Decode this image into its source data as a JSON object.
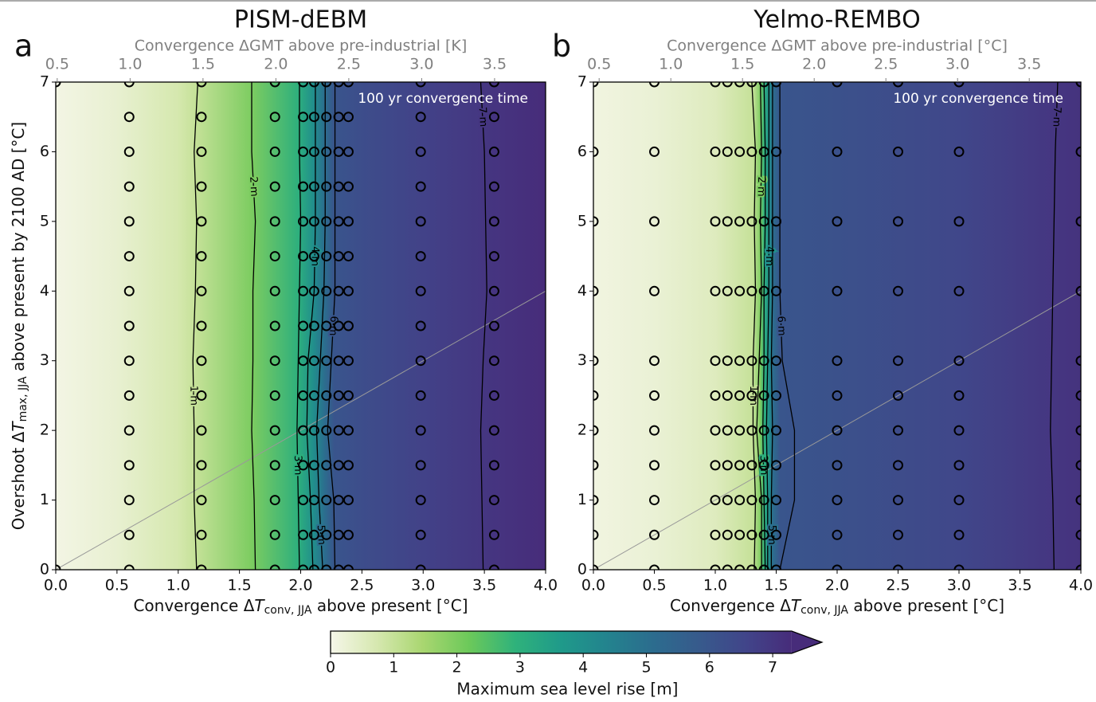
{
  "chart_data": [
    {
      "type": "contour",
      "panel": "a",
      "title": "PISM-dEBM",
      "xlabel": {
        "text": "Convergence Δ",
        "symbol": "T",
        "subscript": "conv, JJA",
        "suffix": " above present [°C]"
      },
      "ylabel": {
        "text": "Overshoot Δ",
        "symbol": "T",
        "subscript": "max, JJA",
        "suffix": " above present by 2100 AD [°C]"
      },
      "x2label": "Convergence ΔGMT above pre-industrial [K]",
      "annotation": "100 yr convergence time",
      "xlim": [
        0,
        4
      ],
      "ylim": [
        0,
        7
      ],
      "x2lim": [
        0.49,
        3.85
      ],
      "xticks": [
        {
          "value": 0,
          "label": "0.0"
        },
        0.5,
        {
          "value": 1,
          "label": "1.0"
        },
        1.5,
        {
          "value": 2,
          "label": "2.0"
        },
        2.5,
        {
          "value": 3,
          "label": "3.0"
        },
        3.5,
        {
          "value": 4,
          "label": "4.0"
        }
      ],
      "yticks": [
        0,
        1,
        2,
        3,
        4,
        5,
        6,
        7
      ],
      "x2ticks": [
        0.5,
        {
          "value": 1,
          "label": "1.0"
        },
        1.5,
        {
          "value": 2,
          "label": "2.0"
        },
        2.5,
        {
          "value": 3,
          "label": "3.0"
        },
        3.5
      ],
      "identity_line": true,
      "field": {
        "x": [
          0,
          0.5,
          1.0,
          1.14,
          1.6,
          1.98,
          2.1,
          2.19,
          2.27,
          2.5,
          3.0,
          3.5,
          4.0
        ],
        "values": [
          0.05,
          0.3,
          0.75,
          1,
          2,
          3,
          4,
          5,
          6,
          6.3,
          6.65,
          7,
          7.3
        ]
      },
      "contours": [
        {
          "level": 1,
          "label": "1 m",
          "y": [
            0,
            1,
            2,
            3,
            4,
            5,
            6,
            7
          ],
          "x": [
            1.15,
            1.13,
            1.13,
            1.12,
            1.14,
            1.15,
            1.13,
            1.16
          ]
        },
        {
          "level": 2,
          "label": "2 m",
          "y": [
            0,
            1,
            2,
            3,
            4,
            5,
            6,
            7
          ],
          "x": [
            1.63,
            1.62,
            1.6,
            1.61,
            1.61,
            1.63,
            1.6,
            1.6
          ]
        },
        {
          "level": 3,
          "label": "3 m",
          "y": [
            0,
            1,
            2,
            3,
            4,
            5,
            6,
            7
          ],
          "x": [
            1.99,
            1.98,
            1.97,
            1.98,
            1.99,
            2.0,
            1.99,
            1.99
          ]
        },
        {
          "level": 4,
          "label": "4 m",
          "y": [
            0,
            1,
            2,
            3,
            4,
            5,
            6,
            7
          ],
          "x": [
            2.1,
            2.08,
            2.05,
            2.06,
            2.11,
            2.12,
            2.12,
            2.12
          ]
        },
        {
          "level": 5,
          "label": "5 m",
          "y": [
            0,
            1,
            2,
            3,
            4,
            5,
            6,
            7
          ],
          "x": [
            2.18,
            2.15,
            2.13,
            2.16,
            2.19,
            2.2,
            2.2,
            2.2
          ]
        },
        {
          "level": 6,
          "label": "6 m",
          "y": [
            0,
            1,
            2,
            3,
            4,
            5,
            6,
            7
          ],
          "x": [
            2.28,
            2.27,
            2.22,
            2.25,
            2.28,
            2.28,
            2.28,
            2.28
          ]
        },
        {
          "level": 7,
          "label": "7 m",
          "y": [
            0,
            1,
            2,
            3,
            4,
            5,
            6,
            7
          ],
          "x": [
            3.49,
            3.48,
            3.47,
            3.49,
            3.52,
            3.51,
            3.5,
            3.47
          ]
        }
      ],
      "samples": [
        {
          "x": 0,
          "y": [
            0,
            7
          ]
        },
        {
          "x": 0.6,
          "y": [
            0,
            0.5,
            1,
            1.5,
            2,
            2.5,
            3,
            3.5,
            4,
            4.5,
            5,
            5.5,
            6,
            6.5,
            7
          ]
        },
        {
          "x": 1.19,
          "y": [
            0,
            0.5,
            1,
            1.5,
            2,
            2.5,
            3,
            3.5,
            4,
            4.5,
            5,
            5.5,
            6,
            6.5,
            7
          ]
        },
        {
          "x": 1.79,
          "y": [
            0,
            0.5,
            1,
            1.5,
            2,
            2.5,
            3,
            3.5,
            4,
            4.5,
            5,
            5.5,
            6,
            6.5,
            7
          ]
        },
        {
          "x": 2.02,
          "y": [
            0,
            0.5,
            1,
            1.5,
            2,
            2.5,
            3,
            3.5,
            4,
            4.5,
            5,
            5.5,
            6,
            6.5,
            7
          ]
        },
        {
          "x": 2.11,
          "y": [
            0,
            0.5,
            1,
            1.5,
            2,
            2.5,
            3,
            3.5,
            4,
            4.5,
            5,
            5.5,
            6,
            6.5,
            7
          ]
        },
        {
          "x": 2.21,
          "y": [
            0,
            0.5,
            1,
            1.5,
            2,
            2.5,
            3,
            3.5,
            4,
            4.5,
            5,
            5.5,
            6,
            6.5,
            7
          ]
        },
        {
          "x": 2.31,
          "y": [
            0,
            0.5,
            1,
            1.5,
            2,
            2.5,
            3,
            3.5,
            4,
            4.5,
            5,
            5.5,
            6,
            6.5,
            7
          ]
        },
        {
          "x": 2.39,
          "y": [
            0,
            0.5,
            1,
            1.5,
            2,
            2.5,
            3,
            3.5,
            4,
            4.5,
            5,
            5.5,
            6,
            6.5,
            7
          ]
        },
        {
          "x": 2.98,
          "y": [
            0,
            0.5,
            1,
            1.5,
            2,
            2.5,
            3,
            3.5,
            4,
            4.5,
            5,
            5.5,
            6,
            6.5,
            7
          ]
        },
        {
          "x": 3.58,
          "y": [
            0,
            0.5,
            1,
            1.5,
            2,
            2.5,
            3,
            3.5,
            4,
            4.5,
            5,
            5.5,
            6,
            6.5,
            7
          ]
        }
      ]
    },
    {
      "type": "contour",
      "panel": "b",
      "title": "Yelmo-REMBO",
      "xlabel": {
        "text": "Convergence Δ",
        "symbol": "T",
        "subscript": "conv, JJA",
        "suffix": " above present [°C]"
      },
      "x2label": "Convergence ΔGMT above pre-industrial [°C]",
      "annotation": "100 yr convergence time",
      "xlim": [
        0,
        4
      ],
      "ylim": [
        0,
        7
      ],
      "x2lim": [
        0.46,
        3.86
      ],
      "xticks": [
        {
          "value": 0,
          "label": "0.0"
        },
        0.5,
        {
          "value": 1,
          "label": "1.0"
        },
        1.5,
        {
          "value": 2,
          "label": "2.0"
        },
        2.5,
        {
          "value": 3,
          "label": "3.0"
        },
        3.5,
        {
          "value": 4,
          "label": "4.0"
        }
      ],
      "yticks": [
        0,
        1,
        2,
        3,
        4,
        5,
        6,
        7
      ],
      "x2ticks": [
        0.5,
        {
          "value": 1,
          "label": "1.0"
        },
        1.5,
        {
          "value": 2,
          "label": "2.0"
        },
        2.5,
        {
          "value": 3,
          "label": "3.0"
        },
        3.5
      ],
      "identity_line": true,
      "field": {
        "x": [
          0,
          0.5,
          1.0,
          1.31,
          1.37,
          1.4,
          1.44,
          1.47,
          1.53,
          2.0,
          3.0,
          3.77,
          4.0
        ],
        "values": [
          0.1,
          0.25,
          0.55,
          1,
          2,
          3,
          4,
          5,
          6,
          6.15,
          6.5,
          7,
          7.1
        ]
      },
      "contours": [
        {
          "level": 1,
          "label": "1 m",
          "y": [
            0,
            1,
            2,
            3,
            4,
            5,
            6,
            7
          ],
          "x": [
            1.32,
            1.33,
            1.31,
            1.31,
            1.33,
            1.32,
            1.33,
            1.3
          ]
        },
        {
          "level": 2,
          "label": "2 m",
          "y": [
            0,
            1,
            2,
            3,
            4,
            5,
            6,
            7
          ],
          "x": [
            1.38,
            1.38,
            1.34,
            1.36,
            1.38,
            1.37,
            1.38,
            1.37
          ]
        },
        {
          "level": 3,
          "label": "3 m",
          "y": [
            0,
            1,
            2,
            3,
            4,
            5,
            6,
            7
          ],
          "x": [
            1.41,
            1.4,
            1.39,
            1.4,
            1.4,
            1.41,
            1.41,
            1.4
          ]
        },
        {
          "level": 4,
          "label": "4 m",
          "y": [
            0,
            1,
            2,
            3,
            4,
            5,
            6,
            7
          ],
          "x": [
            1.43,
            1.43,
            1.42,
            1.43,
            1.44,
            1.44,
            1.44,
            1.44
          ]
        },
        {
          "level": 5,
          "label": "5 m",
          "y": [
            0,
            1,
            2,
            3,
            4,
            5,
            6,
            7
          ],
          "x": [
            1.46,
            1.46,
            1.47,
            1.46,
            1.47,
            1.47,
            1.47,
            1.47
          ]
        },
        {
          "level": 6,
          "label": "6 m",
          "y": [
            0,
            1,
            2,
            3,
            4,
            5,
            6,
            7
          ],
          "x": [
            1.53,
            1.65,
            1.65,
            1.55,
            1.53,
            1.53,
            1.53,
            1.53
          ]
        },
        {
          "level": 7,
          "label": "7 m",
          "y": [
            0,
            1,
            2,
            3,
            4,
            5,
            6,
            7
          ],
          "x": [
            3.78,
            3.77,
            3.75,
            3.76,
            3.77,
            3.78,
            3.79,
            3.81
          ]
        }
      ],
      "samples": [
        {
          "x": 0,
          "y": [
            0,
            0.5,
            1,
            1.5,
            2,
            2.5,
            3,
            4,
            5,
            6,
            7
          ]
        },
        {
          "x": 0.5,
          "y": [
            0,
            0.5,
            1,
            1.5,
            2,
            2.5,
            3,
            4,
            5,
            6,
            7
          ]
        },
        {
          "x": 1.0,
          "y": [
            0,
            0.5,
            1,
            1.5,
            2,
            2.5,
            3,
            4,
            5,
            6,
            7
          ]
        },
        {
          "x": 1.1,
          "y": [
            0,
            0.5,
            1,
            1.5,
            2,
            2.5,
            3,
            4,
            5,
            6,
            7
          ]
        },
        {
          "x": 1.2,
          "y": [
            0,
            0.5,
            1,
            1.5,
            2,
            2.5,
            3,
            4,
            5,
            6,
            7
          ]
        },
        {
          "x": 1.3,
          "y": [
            0,
            0.5,
            1,
            1.5,
            2,
            2.5,
            3,
            4,
            5,
            6,
            7
          ]
        },
        {
          "x": 1.4,
          "y": [
            0,
            0.5,
            1,
            1.5,
            2,
            2.5,
            3,
            4,
            5,
            6,
            7
          ]
        },
        {
          "x": 1.5,
          "y": [
            0,
            0.5,
            1,
            1.5,
            2,
            2.5,
            3,
            4,
            5,
            6,
            7
          ]
        },
        {
          "x": 2.0,
          "y": [
            0,
            0.5,
            1,
            1.5,
            2,
            2.5,
            3,
            4,
            5,
            6,
            7
          ]
        },
        {
          "x": 2.5,
          "y": [
            0,
            0.5,
            1,
            1.5,
            2,
            2.5,
            3,
            4,
            5,
            6,
            7
          ]
        },
        {
          "x": 3.0,
          "y": [
            0,
            0.5,
            1,
            1.5,
            2,
            2.5,
            3,
            4,
            5,
            6,
            7
          ]
        },
        {
          "x": 4.0,
          "y": [
            0,
            0.5,
            1,
            1.5,
            2,
            2.5,
            3,
            4,
            5,
            6,
            7
          ]
        }
      ]
    },
    {
      "type": "colorbar",
      "label": "Maximum sea level rise [m]",
      "lim": [
        0,
        7.3
      ],
      "ticks": [
        0,
        1,
        2,
        3,
        4,
        5,
        6,
        7
      ],
      "extend": "max",
      "colormap": [
        "#f5f6e8",
        "#d6e8b0",
        "#a9d670",
        "#6cc95a",
        "#2fb27b",
        "#1f9a8a",
        "#23838e",
        "#2c6c8e",
        "#375a8c",
        "#41458a",
        "#472c7a"
      ]
    }
  ]
}
